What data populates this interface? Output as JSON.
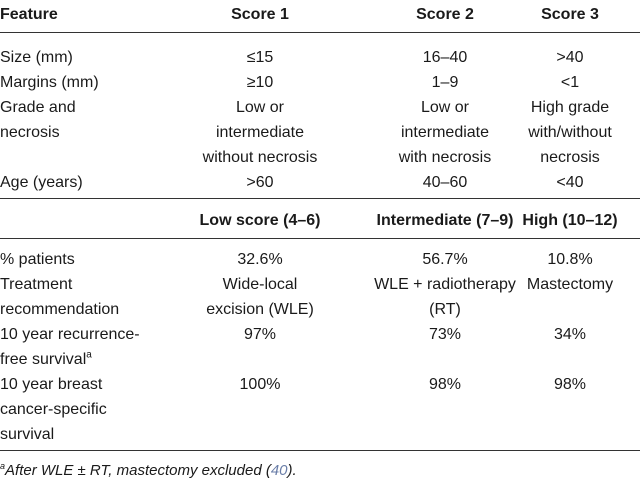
{
  "header": {
    "feature": "Feature",
    "score1": "Score 1",
    "score2": "Score 2",
    "score3": "Score 3"
  },
  "features": [
    {
      "label": "Size (mm)",
      "s1": "≤15",
      "s2": "16–40",
      "s3": ">40"
    },
    {
      "label": "Margins (mm)",
      "s1": "≥10",
      "s2": "1–9",
      "s3": "<1"
    },
    {
      "label_lines": [
        "Grade and",
        "necrosis"
      ],
      "s1_lines": [
        "Low or",
        "intermediate",
        "without necrosis"
      ],
      "s2_lines": [
        "Low or",
        "intermediate",
        "with necrosis"
      ],
      "s3_lines": [
        "High grade",
        "with/without",
        "necrosis"
      ]
    },
    {
      "label": "Age (years)",
      "s1": ">60",
      "s2": "40–60",
      "s3": "<40"
    }
  ],
  "groups": {
    "low": "Low score (4–6)",
    "intermediate": "Intermediate (7–9)",
    "high": "High (10–12)"
  },
  "outcomes": [
    {
      "label": "% patients",
      "low": "32.6%",
      "int": "56.7%",
      "high": "10.8%"
    },
    {
      "label_lines": [
        "Treatment",
        "recommendation"
      ],
      "low_lines": [
        "Wide-local",
        "excision (WLE)"
      ],
      "int_lines": [
        "WLE + radiotherapy",
        "(RT)"
      ],
      "high": "Mastectomy"
    },
    {
      "label_lines": [
        "10 year recurrence-",
        "free survival"
      ],
      "label_sup": "a",
      "low": "97%",
      "int": "73%",
      "high": "34%"
    },
    {
      "label_lines": [
        "10 year breast",
        "cancer-specific",
        "survival"
      ],
      "low": "100%",
      "int": "98%",
      "high": "98%"
    }
  ],
  "footnote": {
    "sup": "a",
    "text": "After WLE ± RT, mastectomy excluded (",
    "ref": "40",
    "end": ")."
  }
}
